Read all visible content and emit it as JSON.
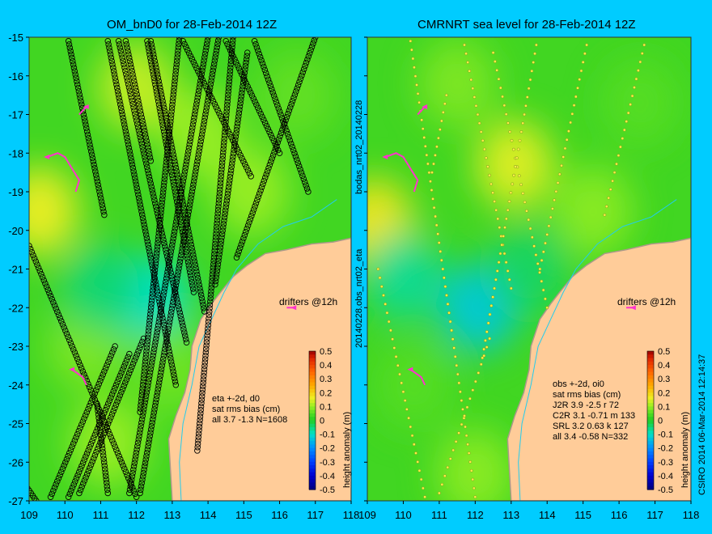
{
  "colors": {
    "background": "#00ccff",
    "land": "#ffcc99",
    "land_edge": "#aa9988",
    "track_point": "#000000",
    "drifter": "#ff33cc",
    "river": "#22ccee"
  },
  "side_labels": {
    "left_vertical": "20140228.obs_nrt02_eta",
    "left_vertical_top": "bodas_nrt02_20140228",
    "right_vertical": "CSIRO 2014   06-Mar-2014 12:14:37"
  },
  "chart_data": [
    {
      "type": "heatmap",
      "title": "OM_bnD0 for 28-Feb-2014 12Z",
      "x_ticks": [
        "109",
        "110",
        "111",
        "112",
        "113",
        "114",
        "115",
        "116",
        "117",
        "118"
      ],
      "y_ticks": [
        "-15",
        "-16",
        "-17",
        "-18",
        "-19",
        "-20",
        "-21",
        "-22",
        "-23",
        "-24",
        "-25",
        "-26",
        "-27"
      ],
      "xlim": [
        109,
        118
      ],
      "ylim": [
        -27,
        -15
      ],
      "colorbar": {
        "label": "height anomaly (m)",
        "ticks": [
          "0.5",
          "0.4",
          "0.3",
          "0.2",
          "0.1",
          "0",
          "-0.1",
          "-0.2",
          "-0.3",
          "-0.4",
          "-0.5"
        ],
        "range": [
          -0.5,
          0.5
        ]
      },
      "legend": "drifters @12h",
      "stats": [
        "eta +-2d, d0",
        "sat rms bias (cm)",
        "all 3.7 -1.3 N=1608"
      ],
      "field_blobs": [
        {
          "x": 109.3,
          "y": -19.5,
          "v": 0.16
        },
        {
          "x": 112.0,
          "y": -16.3,
          "v": 0.13
        },
        {
          "x": 113.8,
          "y": -17.5,
          "v": 0.1
        },
        {
          "x": 116.5,
          "y": -16.5,
          "v": 0.06
        },
        {
          "x": 112.4,
          "y": -21.8,
          "v": -0.1
        },
        {
          "x": 110.6,
          "y": -23.0,
          "v": 0.08
        },
        {
          "x": 115.2,
          "y": -19.0,
          "v": 0.1
        },
        {
          "x": 113.0,
          "y": -23.6,
          "v": 0.07
        },
        {
          "x": 111.2,
          "y": -25.5,
          "v": 0.1
        },
        {
          "x": 111.0,
          "y": -21.5,
          "v": -0.05
        }
      ],
      "tracks": [
        [
          [
            109.0,
            -20.4
          ],
          [
            112.0,
            -26.9
          ]
        ],
        [
          [
            109.6,
            -26.9
          ],
          [
            111.4,
            -23.0
          ]
        ],
        [
          [
            110.1,
            -26.9
          ],
          [
            111.8,
            -23.2
          ]
        ],
        [
          [
            110.4,
            -26.8
          ],
          [
            112.2,
            -22.8
          ]
        ],
        [
          [
            110.1,
            -15.1
          ],
          [
            111.1,
            -19.6
          ]
        ],
        [
          [
            111.2,
            -15.1
          ],
          [
            113.1,
            -24.0
          ]
        ],
        [
          [
            111.5,
            -15.1
          ],
          [
            113.4,
            -22.9
          ]
        ],
        [
          [
            111.7,
            -15.1
          ],
          [
            112.4,
            -18.2
          ]
        ],
        [
          [
            112.3,
            -15.1
          ],
          [
            113.6,
            -21.6
          ]
        ],
        [
          [
            112.4,
            -15.1
          ],
          [
            113.9,
            -22.1
          ]
        ],
        [
          [
            112.1,
            -24.7
          ],
          [
            113.2,
            -15.0
          ]
        ],
        [
          [
            111.8,
            -26.8
          ],
          [
            114.0,
            -15.0
          ]
        ],
        [
          [
            112.1,
            -26.8
          ],
          [
            114.3,
            -15.0
          ]
        ],
        [
          [
            113.7,
            -25.7
          ],
          [
            114.7,
            -15.0
          ]
        ],
        [
          [
            114.2,
            -21.4
          ],
          [
            115.1,
            -15.4
          ]
        ],
        [
          [
            114.8,
            -20.7
          ],
          [
            117.0,
            -15.0
          ]
        ],
        [
          [
            115.3,
            -15.1
          ],
          [
            116.8,
            -19.0
          ]
        ],
        [
          [
            114.5,
            -15.1
          ],
          [
            116.0,
            -18.0
          ]
        ],
        [
          [
            113.3,
            -15.1
          ],
          [
            115.2,
            -18.6
          ]
        ],
        [
          [
            111.2,
            -26.8
          ],
          [
            110.9,
            -24.5
          ]
        ],
        [
          [
            108.9,
            -26.6
          ],
          [
            109.2,
            -27.0
          ]
        ]
      ],
      "drifters": [
        [
          [
            110.6,
            -16.8
          ],
          [
            110.4,
            -17.0
          ]
        ],
        [
          [
            109.5,
            -18.1
          ],
          [
            109.8,
            -18.0
          ],
          [
            110.0,
            -18.1
          ],
          [
            110.2,
            -18.4
          ],
          [
            110.4,
            -18.7
          ],
          [
            110.3,
            -19.0
          ]
        ],
        [
          [
            110.2,
            -23.6
          ],
          [
            110.5,
            -23.8
          ],
          [
            110.6,
            -24.0
          ]
        ],
        [
          [
            116.4,
            -22.0
          ],
          [
            116.2,
            -22.0
          ]
        ]
      ]
    },
    {
      "type": "heatmap",
      "title": "CMRNRT sea level  for 28-Feb-2014 12Z",
      "x_ticks": [
        "109",
        "110",
        "111",
        "112",
        "113",
        "114",
        "115",
        "116",
        "117",
        "118"
      ],
      "y_ticks": [
        "-15",
        "-16",
        "-17",
        "-18",
        "-19",
        "-20",
        "-21",
        "-22",
        "-23",
        "-24",
        "-25",
        "-26",
        "-27"
      ],
      "xlim": [
        109,
        118
      ],
      "ylim": [
        -27,
        -15
      ],
      "colorbar": {
        "label": "height anomaly (m)",
        "ticks": [
          "0.5",
          "0.4",
          "0.3",
          "0.2",
          "0.1",
          "0",
          "-0.1",
          "-0.2",
          "-0.3",
          "-0.4",
          "-0.5"
        ],
        "range": [
          -0.5,
          0.5
        ]
      },
      "legend": "drifters @12h",
      "stats": [
        "obs +-2d, oi0",
        "sat rms bias (cm)",
        "J2R   3.9 -2.5 r 72",
        "C2R   3.1 -0.71 m 133",
        "SRL   3.2 0.63 k 127",
        "all   3.4 -0.58 N=332"
      ],
      "field_blobs": [
        {
          "x": 109.2,
          "y": -19.8,
          "v": 0.17
        },
        {
          "x": 113.1,
          "y": -18.3,
          "v": 0.15
        },
        {
          "x": 111.5,
          "y": -16.2,
          "v": 0.08
        },
        {
          "x": 116.6,
          "y": -16.7,
          "v": 0.05
        },
        {
          "x": 112.1,
          "y": -22.0,
          "v": -0.13
        },
        {
          "x": 110.0,
          "y": -21.2,
          "v": -0.07
        },
        {
          "x": 115.3,
          "y": -19.5,
          "v": 0.09
        },
        {
          "x": 112.0,
          "y": -26.3,
          "v": 0.09
        },
        {
          "x": 110.3,
          "y": -24.0,
          "v": 0.05
        },
        {
          "x": 113.5,
          "y": -21.0,
          "v": -0.04
        }
      ],
      "tracks": [
        [
          [
            109.3,
            -21.0
          ],
          [
            110.6,
            -26.9
          ]
        ],
        [
          [
            110.2,
            -15.1
          ],
          [
            112.0,
            -26.9
          ]
        ],
        [
          [
            111.7,
            -15.2
          ],
          [
            113.0,
            -21.5
          ]
        ],
        [
          [
            112.5,
            -15.4
          ],
          [
            114.0,
            -22.0
          ]
        ],
        [
          [
            113.7,
            -15.2
          ],
          [
            112.2,
            -23.3
          ]
        ],
        [
          [
            115.1,
            -15.2
          ],
          [
            113.8,
            -21.0
          ]
        ],
        [
          [
            116.7,
            -15.2
          ],
          [
            115.6,
            -19.6
          ]
        ],
        [
          [
            110.8,
            -18.5
          ],
          [
            111.2,
            -16.5
          ]
        ],
        [
          [
            111.0,
            -26.8
          ],
          [
            112.4,
            -22.8
          ]
        ]
      ],
      "drifters": [
        [
          [
            110.6,
            -16.8
          ],
          [
            110.4,
            -17.0
          ]
        ],
        [
          [
            109.5,
            -18.1
          ],
          [
            109.8,
            -18.0
          ],
          [
            110.0,
            -18.1
          ],
          [
            110.2,
            -18.4
          ],
          [
            110.4,
            -18.7
          ],
          [
            110.3,
            -19.0
          ]
        ],
        [
          [
            110.2,
            -23.6
          ],
          [
            110.5,
            -23.8
          ],
          [
            110.6,
            -24.0
          ]
        ],
        [
          [
            116.4,
            -22.0
          ],
          [
            116.2,
            -22.0
          ]
        ]
      ]
    }
  ]
}
